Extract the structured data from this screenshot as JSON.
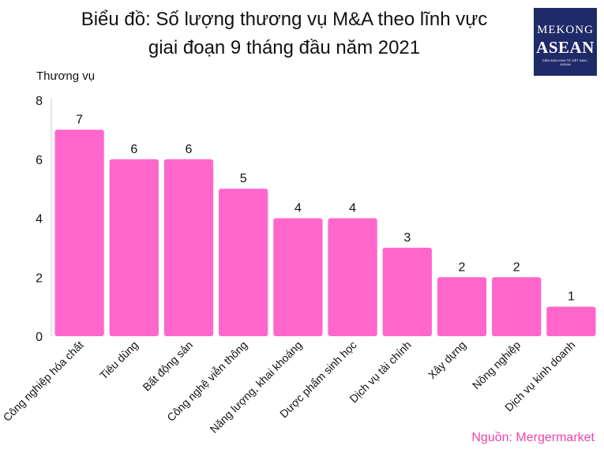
{
  "chart_data": {
    "type": "bar",
    "title_line1": "Biểu đồ: Số lượng thương vụ M&A theo lĩnh vực",
    "title_line2": "giai đoạn 9 tháng đầu năm 2021",
    "ylabel": "Thương vụ",
    "xlabel": "",
    "categories": [
      "Công nghiệp hóa chất",
      "Tiêu dùng",
      "Bất động sản",
      "Công nghệ viễn thông",
      "Năng lượng, khai khoáng",
      "Dược phẩm sinh học",
      "Dịch vụ tài chính",
      "Xây dựng",
      "Nông nghiệp",
      "Dịch vụ kinh doanh"
    ],
    "values": [
      7,
      6,
      6,
      5,
      4,
      4,
      3,
      2,
      2,
      1
    ],
    "ylim": [
      0,
      8
    ],
    "yticks": [
      0,
      2,
      4,
      6,
      8
    ],
    "grid": false,
    "bar_color": "#ff66cc",
    "source": "Nguồn: Mergermarket"
  },
  "logo": {
    "line1": "MEKONG",
    "line2": "ASEAN",
    "line3": "DIỄN ĐÀN KINH TẾ VIỆT NAM - ASEAN"
  }
}
